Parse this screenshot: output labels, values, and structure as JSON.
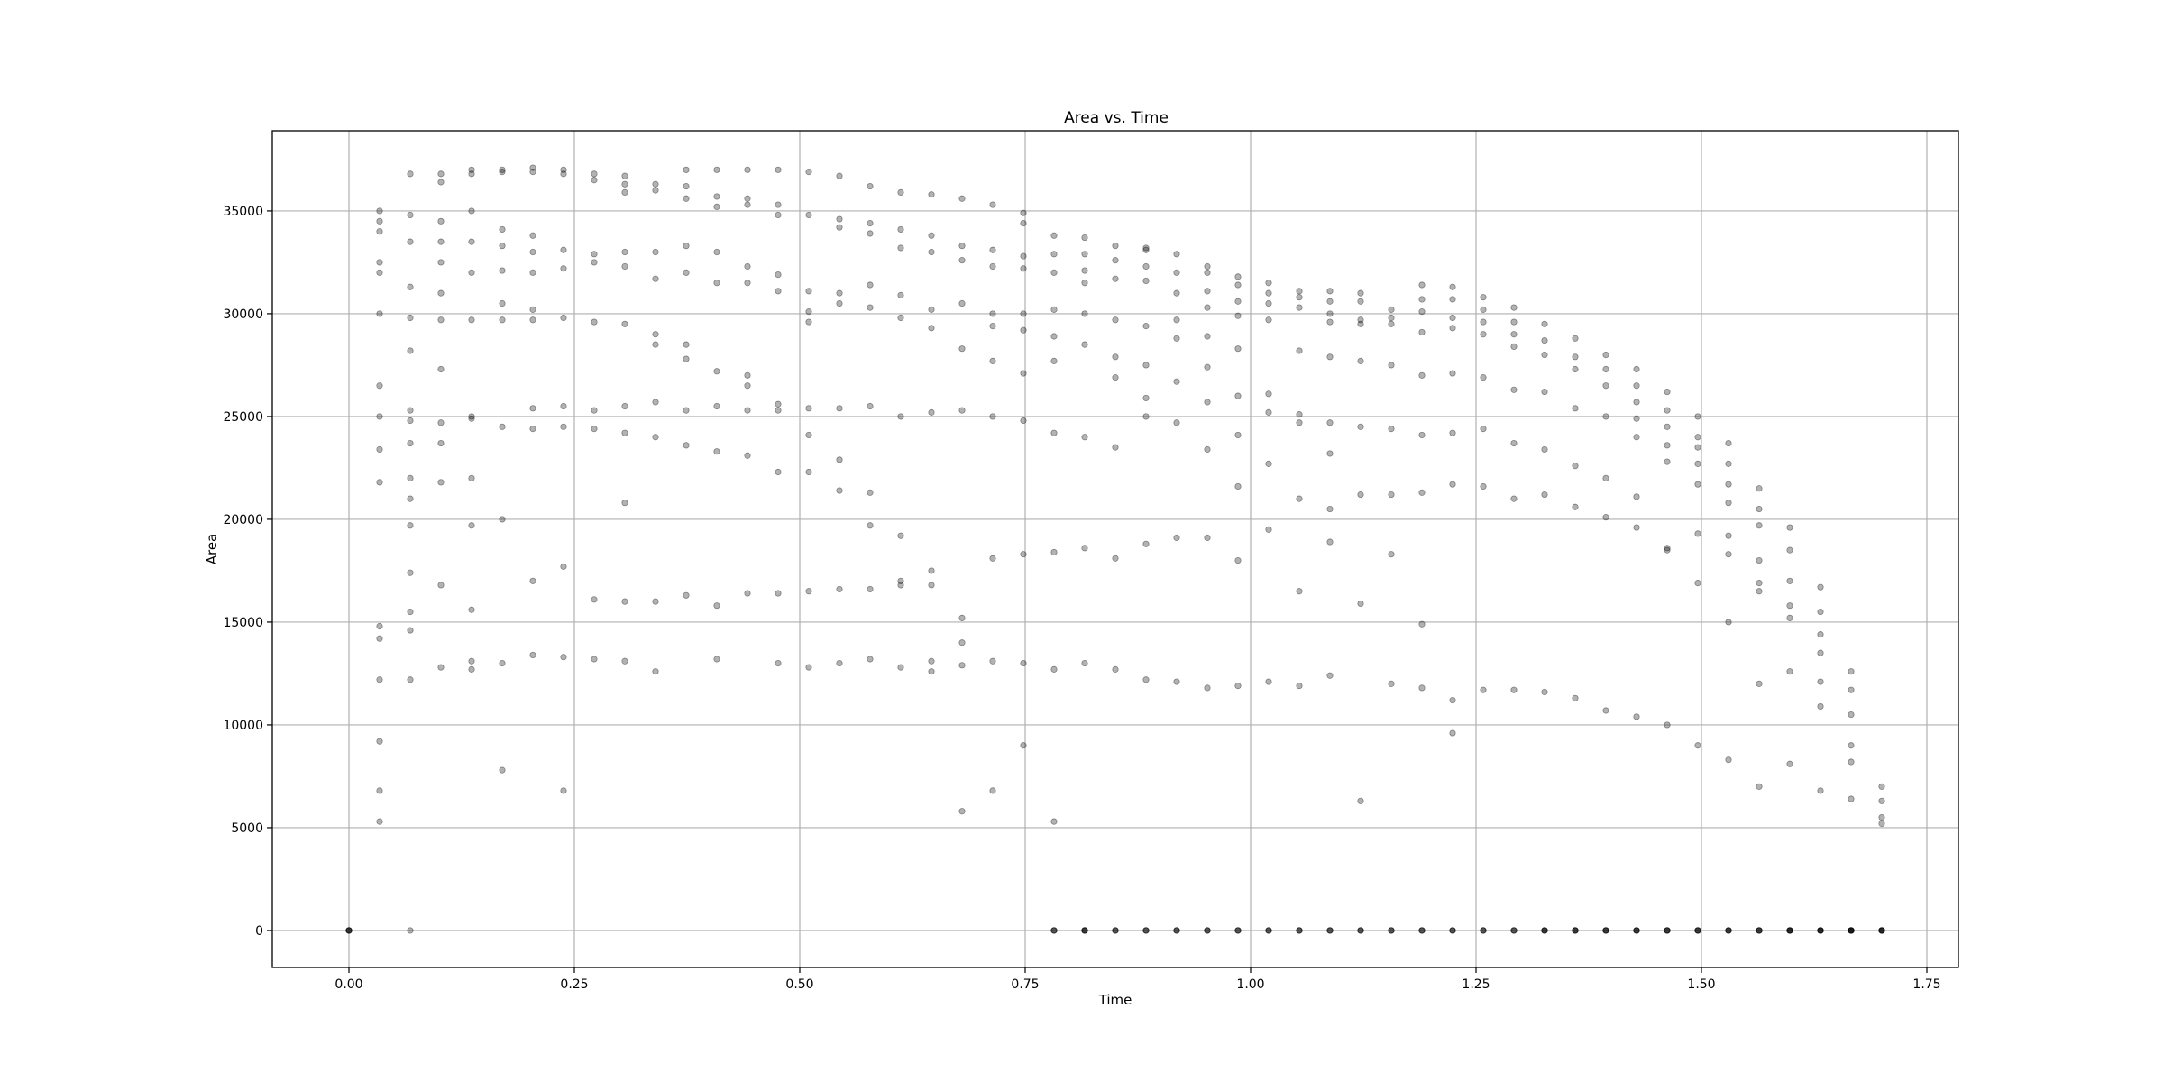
{
  "chart_data": {
    "type": "scatter",
    "title": "Area vs. Time",
    "xlabel": "Time",
    "ylabel": "Area",
    "xlim": [
      -0.085,
      1.785
    ],
    "ylim": [
      -1800,
      38900
    ],
    "xticks": [
      0.0,
      0.25,
      0.5,
      0.75,
      1.0,
      1.25,
      1.5,
      1.75
    ],
    "xtick_labels": [
      "0.00",
      "0.25",
      "0.50",
      "0.75",
      "1.00",
      "1.25",
      "1.50",
      "1.75"
    ],
    "yticks": [
      0,
      5000,
      10000,
      15000,
      20000,
      25000,
      30000,
      35000
    ],
    "ytick_labels": [
      "0",
      "5000",
      "10000",
      "15000",
      "20000",
      "25000",
      "30000",
      "35000"
    ],
    "grid": true,
    "marker_color": "#000000",
    "marker_alpha": 0.3,
    "x": [
      0,
      0.034,
      0.034,
      0.034,
      0.034,
      0.034,
      0.034,
      0.034,
      0.034,
      0.034,
      0.034,
      0.034,
      0.034,
      0.034,
      0.034,
      0.034,
      0.034,
      0.068,
      0.068,
      0.068,
      0.068,
      0.068,
      0.068,
      0.068,
      0.068,
      0.068,
      0.068,
      0.068,
      0.068,
      0.068,
      0.068,
      0.068,
      0.068,
      0.068,
      0.102,
      0.102,
      0.102,
      0.102,
      0.102,
      0.102,
      0.102,
      0.102,
      0.102,
      0.102,
      0.102,
      0.102,
      0.102,
      0.136,
      0.136,
      0.136,
      0.136,
      0.136,
      0.136,
      0.136,
      0.136,
      0.136,
      0.136,
      0.136,
      0.136,
      0.136,
      0.17,
      0.17,
      0.17,
      0.17,
      0.17,
      0.17,
      0.17,
      0.17,
      0.17,
      0.17,
      0.17,
      0.204,
      0.204,
      0.204,
      0.204,
      0.204,
      0.204,
      0.204,
      0.204,
      0.204,
      0.204,
      0.204,
      0.238,
      0.238,
      0.238,
      0.238,
      0.238,
      0.238,
      0.238,
      0.238,
      0.238,
      0.238,
      0.272,
      0.272,
      0.272,
      0.272,
      0.272,
      0.272,
      0.272,
      0.272,
      0.272,
      0.306,
      0.306,
      0.306,
      0.306,
      0.306,
      0.306,
      0.306,
      0.306,
      0.306,
      0.306,
      0.306,
      0.34,
      0.34,
      0.34,
      0.34,
      0.34,
      0.34,
      0.34,
      0.34,
      0.34,
      0.34,
      0.374,
      0.374,
      0.374,
      0.374,
      0.374,
      0.374,
      0.374,
      0.374,
      0.374,
      0.374,
      0.408,
      0.408,
      0.408,
      0.408,
      0.408,
      0.408,
      0.408,
      0.408,
      0.408,
      0.408,
      0.442,
      0.442,
      0.442,
      0.442,
      0.442,
      0.442,
      0.442,
      0.442,
      0.442,
      0.442,
      0.476,
      0.476,
      0.476,
      0.476,
      0.476,
      0.476,
      0.476,
      0.476,
      0.476,
      0.476,
      0.51,
      0.51,
      0.51,
      0.51,
      0.51,
      0.51,
      0.51,
      0.51,
      0.51,
      0.51,
      0.544,
      0.544,
      0.544,
      0.544,
      0.544,
      0.544,
      0.544,
      0.544,
      0.544,
      0.544,
      0.578,
      0.578,
      0.578,
      0.578,
      0.578,
      0.578,
      0.578,
      0.578,
      0.578,
      0.578,
      0.612,
      0.612,
      0.612,
      0.612,
      0.612,
      0.612,
      0.612,
      0.612,
      0.612,
      0.612,
      0.646,
      0.646,
      0.646,
      0.646,
      0.646,
      0.646,
      0.646,
      0.646,
      0.646,
      0.646,
      0.68,
      0.68,
      0.68,
      0.68,
      0.68,
      0.68,
      0.68,
      0.68,
      0.68,
      0.68,
      0.714,
      0.714,
      0.714,
      0.714,
      0.714,
      0.714,
      0.714,
      0.714,
      0.714,
      0.714,
      0.748,
      0.748,
      0.748,
      0.748,
      0.748,
      0.748,
      0.748,
      0.748,
      0.748,
      0.748,
      0.748,
      0.782,
      0.782,
      0.782,
      0.782,
      0.782,
      0.782,
      0.782,
      0.782,
      0.782,
      0.782,
      0.816,
      0.816,
      0.816,
      0.816,
      0.816,
      0.816,
      0.816,
      0.816,
      0.816,
      0.816,
      0.85,
      0.85,
      0.85,
      0.85,
      0.85,
      0.85,
      0.85,
      0.85,
      0.85,
      0.884,
      0.884,
      0.884,
      0.884,
      0.884,
      0.884,
      0.884,
      0.884,
      0.884,
      0.884,
      0.918,
      0.918,
      0.918,
      0.918,
      0.918,
      0.918,
      0.918,
      0.918,
      0.918,
      0.952,
      0.952,
      0.952,
      0.952,
      0.952,
      0.952,
      0.952,
      0.952,
      0.952,
      0.952,
      0.986,
      0.986,
      0.986,
      0.986,
      0.986,
      0.986,
      0.986,
      0.986,
      0.986,
      0.986,
      1.02,
      1.02,
      1.02,
      1.02,
      1.02,
      1.02,
      1.02,
      1.02,
      1.02,
      1.054,
      1.054,
      1.054,
      1.054,
      1.054,
      1.054,
      1.054,
      1.054,
      1.054,
      1.088,
      1.088,
      1.088,
      1.088,
      1.088,
      1.088,
      1.088,
      1.088,
      1.088,
      1.088,
      1.122,
      1.122,
      1.122,
      1.122,
      1.122,
      1.122,
      1.122,
      1.122,
      1.122,
      1.156,
      1.156,
      1.156,
      1.156,
      1.156,
      1.156,
      1.156,
      1.156,
      1.19,
      1.19,
      1.19,
      1.19,
      1.19,
      1.19,
      1.19,
      1.19,
      1.19,
      1.224,
      1.224,
      1.224,
      1.224,
      1.224,
      1.224,
      1.224,
      1.224,
      1.224,
      1.258,
      1.258,
      1.258,
      1.258,
      1.258,
      1.258,
      1.258,
      1.258,
      1.292,
      1.292,
      1.292,
      1.292,
      1.292,
      1.292,
      1.292,
      1.292,
      1.326,
      1.326,
      1.326,
      1.326,
      1.326,
      1.326,
      1.326,
      1.326,
      1.36,
      1.36,
      1.36,
      1.36,
      1.36,
      1.36,
      1.36,
      1.36,
      1.394,
      1.394,
      1.394,
      1.394,
      1.394,
      1.394,
      1.394,
      1.394,
      1.428,
      1.428,
      1.428,
      1.428,
      1.428,
      1.428,
      1.428,
      1.428,
      1.428,
      1.462,
      1.462,
      1.462,
      1.462,
      1.462,
      1.462,
      1.462,
      1.462,
      1.462,
      1.496,
      1.496,
      1.496,
      1.496,
      1.496,
      1.496,
      1.496,
      1.496,
      1.496,
      1.53,
      1.53,
      1.53,
      1.53,
      1.53,
      1.53,
      1.53,
      1.53,
      1.53,
      1.564,
      1.564,
      1.564,
      1.564,
      1.564,
      1.564,
      1.564,
      1.564,
      1.564,
      1.598,
      1.598,
      1.598,
      1.598,
      1.598,
      1.598,
      1.598,
      1.598,
      1.598,
      1.632,
      1.632,
      1.632,
      1.632,
      1.632,
      1.632,
      1.632,
      1.632,
      1.632,
      1.666,
      1.666,
      1.666,
      1.666,
      1.666,
      1.666,
      1.666,
      1.666,
      1.666,
      1.7,
      1.7,
      1.7,
      1.7,
      1.7,
      1.7
    ],
    "y": [
      0,
      35000,
      34500,
      34000,
      32500,
      32000,
      30000,
      26500,
      25000,
      23400,
      21800,
      14800,
      14200,
      12200,
      9200,
      6800,
      5300,
      36800,
      34800,
      33500,
      31300,
      29800,
      28200,
      25300,
      24800,
      23700,
      22000,
      21000,
      19700,
      17400,
      15500,
      14600,
      12200,
      0,
      36800,
      36400,
      34500,
      33500,
      32500,
      31000,
      29700,
      27300,
      24700,
      23700,
      21800,
      16800,
      12800,
      37000,
      36800,
      35000,
      33500,
      32000,
      29700,
      25000,
      24900,
      22000,
      19700,
      15600,
      13100,
      12700,
      37000,
      36900,
      34100,
      33300,
      32100,
      30500,
      29700,
      24500,
      20000,
      13000,
      7800,
      37100,
      36900,
      33800,
      33000,
      32000,
      30200,
      29700,
      25400,
      24400,
      17000,
      13400,
      37000,
      36800,
      33100,
      32200,
      29800,
      25500,
      24500,
      17700,
      13300,
      6800,
      36800,
      36500,
      32900,
      32500,
      29600,
      25300,
      24400,
      16100,
      13200,
      36700,
      36300,
      35900,
      33000,
      32300,
      29500,
      25500,
      24200,
      20800,
      16000,
      13100,
      36300,
      36000,
      33000,
      31700,
      29000,
      28500,
      25700,
      24000,
      16000,
      12600,
      37000,
      36200,
      35600,
      33300,
      32000,
      28500,
      27800,
      25300,
      23600,
      16300,
      37000,
      35700,
      35200,
      33000,
      31500,
      27200,
      25500,
      23300,
      15800,
      13200,
      37000,
      35600,
      35300,
      32300,
      31500,
      27000,
      26500,
      25300,
      23100,
      16400,
      37000,
      35300,
      34800,
      31900,
      31100,
      25600,
      25300,
      22300,
      16400,
      13000,
      36900,
      34800,
      31100,
      30100,
      29600,
      25400,
      24100,
      22300,
      16500,
      12800,
      36700,
      34600,
      34200,
      31000,
      30500,
      25400,
      22900,
      21400,
      16600,
      13000,
      36200,
      34400,
      33900,
      31400,
      30300,
      25500,
      21300,
      19700,
      16600,
      13200,
      35900,
      34100,
      33200,
      30900,
      29800,
      25000,
      19200,
      17000,
      16800,
      12800,
      35800,
      33800,
      33000,
      30200,
      29300,
      25200,
      17500,
      16800,
      13100,
      12600,
      35600,
      33300,
      32600,
      30500,
      28300,
      25300,
      15200,
      14000,
      12900,
      5800,
      35300,
      33100,
      32300,
      30000,
      29400,
      27700,
      25000,
      18100,
      13100,
      6800,
      34900,
      34400,
      32800,
      32200,
      30000,
      29200,
      27100,
      24800,
      18300,
      13000,
      9000,
      33800,
      32900,
      32000,
      30200,
      28900,
      27700,
      24200,
      18400,
      12700,
      5300,
      33700,
      32900,
      32100,
      31500,
      30000,
      28500,
      24000,
      18600,
      13000,
      0,
      33300,
      32600,
      31700,
      29700,
      27900,
      26900,
      23500,
      18100,
      12700,
      33100,
      32300,
      31600,
      29400,
      27500,
      25900,
      25000,
      18800,
      12200,
      33200,
      32000,
      31000,
      29700,
      28800,
      26700,
      24700,
      19100,
      12100,
      32900,
      32000,
      31100,
      30300,
      28900,
      27400,
      25700,
      23400,
      19100,
      11800,
      32300,
      31400,
      30600,
      29900,
      28300,
      26000,
      24100,
      21600,
      18000,
      11900,
      31800,
      31000,
      30500,
      29700,
      26100,
      25200,
      22700,
      19500,
      12100,
      31500,
      30800,
      30300,
      28200,
      25100,
      24700,
      21000,
      16500,
      11900,
      31100,
      30600,
      30000,
      29600,
      27900,
      24700,
      23200,
      20500,
      18900,
      12400,
      31100,
      30600,
      29700,
      29500,
      27700,
      24500,
      21200,
      15900,
      6300,
      31000,
      30200,
      29800,
      29500,
      27500,
      24400,
      21200,
      18300,
      12000,
      31400,
      30700,
      30100,
      29100,
      27000,
      24100,
      21300,
      14900,
      11800,
      31300,
      30700,
      29800,
      29300,
      27100,
      24200,
      21700,
      11200,
      9600,
      30800,
      30200,
      29600,
      29000,
      26900,
      24400,
      21600,
      11700,
      30300,
      29600,
      29000,
      28400,
      26300,
      23700,
      21000,
      11700,
      29500,
      28700,
      28000,
      26200,
      23400,
      21200,
      11600,
      0,
      28800,
      27900,
      27300,
      25400,
      22600,
      20600,
      11300,
      0,
      28000,
      27300,
      26500,
      25000,
      22000,
      20100,
      10700,
      0,
      27300,
      26500,
      25700,
      24900,
      24000,
      21100,
      19600,
      10400,
      0,
      26200,
      25300,
      24500,
      23600,
      22800,
      18600,
      18500,
      10000,
      0,
      25000,
      24000,
      23500,
      22700,
      21700,
      19300,
      16900,
      9000,
      0,
      23700,
      22700,
      21700,
      20800,
      19200,
      18300,
      15000,
      8300,
      0,
      21500,
      20500,
      19700,
      18000,
      16900,
      16500,
      12000,
      7000,
      0,
      19600,
      18500,
      17000,
      15800,
      15200,
      12600,
      8100,
      0,
      0,
      16700,
      15500,
      14400,
      13500,
      12100,
      10900,
      6800,
      0,
      0,
      12600,
      11700,
      10500,
      9000,
      8200,
      6400,
      0,
      0,
      0,
      7000,
      6300,
      5500,
      5200,
      0,
      0
    ],
    "zero_markers": {
      "x": [
        0,
        0.782,
        0.816,
        0.85,
        0.884,
        0.918,
        0.952,
        0.986,
        1.02,
        1.054,
        1.088,
        1.122,
        1.156,
        1.19,
        1.224,
        1.258,
        1.292,
        1.326,
        1.36,
        1.394,
        1.428,
        1.462,
        1.496,
        1.53,
        1.564,
        1.598,
        1.632,
        1.666,
        1.7
      ],
      "y": [
        0,
        0,
        0,
        0,
        0,
        0,
        0,
        0,
        0,
        0,
        0,
        0,
        0,
        0,
        0,
        0,
        0,
        0,
        0,
        0,
        0,
        0,
        0,
        0,
        0,
        0,
        0,
        0,
        0
      ]
    }
  }
}
